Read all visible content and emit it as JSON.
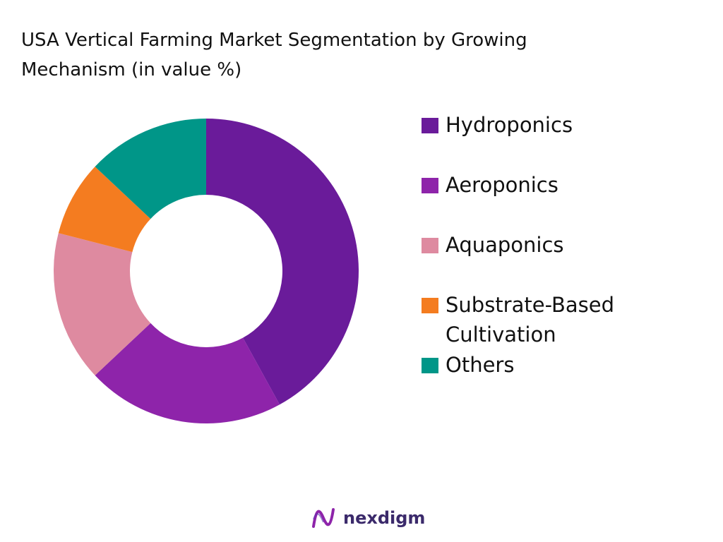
{
  "chart_data": {
    "type": "donut",
    "title": "USA Vertical Farming Market Segmentation by Growing Mechanism (in value %)",
    "categories": [
      "Hydroponics",
      "Aeroponics",
      "Aquaponics",
      "Substrate-Based Cultivation",
      "Others"
    ],
    "values": [
      42,
      21,
      16,
      8,
      13
    ],
    "colors": [
      "#6a1b9a",
      "#8e24aa",
      "#de8aa0",
      "#f47c20",
      "#009688"
    ],
    "legend": "right"
  },
  "footer": {
    "brand": "nexdigm"
  }
}
